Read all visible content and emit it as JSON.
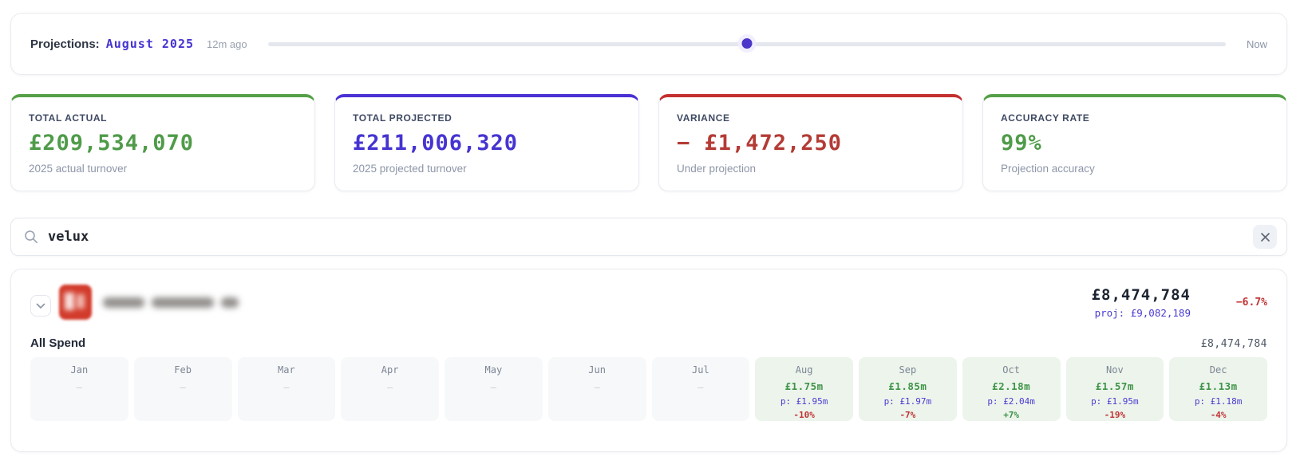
{
  "topbar": {
    "label": "Projections:",
    "period": "August 2025",
    "ago": "12m ago",
    "now": "Now",
    "slider_percent": 50
  },
  "stats": [
    {
      "label": "TOTAL ACTUAL",
      "value": "£209,534,070",
      "sub": "2025 actual turnover",
      "accent": "#55a047"
    },
    {
      "label": "TOTAL PROJECTED",
      "value": "£211,006,320",
      "sub": "2025 projected turnover",
      "accent": "#4931d4"
    },
    {
      "label": "VARIANCE",
      "value": "− £1,472,250",
      "sub": "Under projection",
      "accent": "#c42f2f"
    },
    {
      "label": "ACCURACY RATE",
      "value": "99%",
      "sub": "Projection accuracy",
      "accent": "#55a047"
    }
  ],
  "search": {
    "value": "velux",
    "clear_label": "clear search"
  },
  "company": {
    "name_redacted": true,
    "total": "£8,474,784",
    "proj": "proj: £9,082,189",
    "variance_pct": "−6.7%",
    "spend_label": "All Spend",
    "spend_total": "£8,474,784"
  },
  "months": [
    {
      "name": "Jan",
      "empty": true
    },
    {
      "name": "Feb",
      "empty": true
    },
    {
      "name": "Mar",
      "empty": true
    },
    {
      "name": "Apr",
      "empty": true
    },
    {
      "name": "May",
      "empty": true
    },
    {
      "name": "Jun",
      "empty": true
    },
    {
      "name": "Jul",
      "empty": true
    },
    {
      "name": "Aug",
      "empty": false,
      "value": "£1.75m",
      "proj": "p: £1.95m",
      "pct": "-10%"
    },
    {
      "name": "Sep",
      "empty": false,
      "value": "£1.85m",
      "proj": "p: £1.97m",
      "pct": "-7%"
    },
    {
      "name": "Oct",
      "empty": false,
      "value": "£2.18m",
      "proj": "p: £2.04m",
      "pct": "+7%"
    },
    {
      "name": "Nov",
      "empty": false,
      "value": "£1.57m",
      "proj": "p: £1.95m",
      "pct": "-19%"
    },
    {
      "name": "Dec",
      "empty": false,
      "value": "£1.13m",
      "proj": "p: £1.18m",
      "pct": "-4%"
    }
  ],
  "colors": {
    "accent_purple": "#4634d1",
    "accent_green": "#4f9b49",
    "accent_red": "#b43b35",
    "pct_negative": "#c13434",
    "pct_positive": "#3f9447",
    "logo_red": "#d23b2b"
  },
  "empty_dash": "—"
}
